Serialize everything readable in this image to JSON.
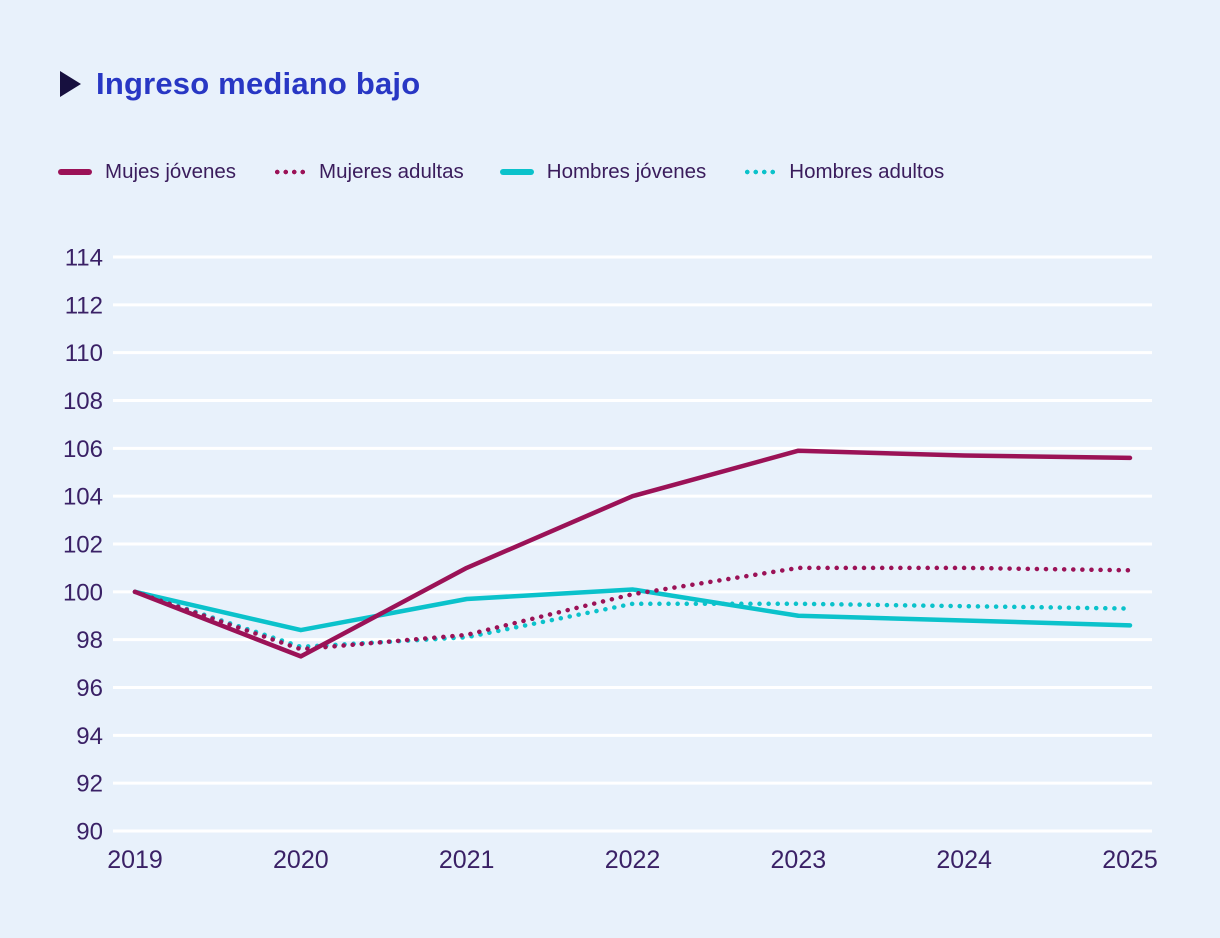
{
  "colors": {
    "background": "#e8f1fb",
    "title": "#2837c4",
    "title_arrow": "#17103f",
    "grid": "#ffffff",
    "tick_text": "#3a2166",
    "legend_text": "#3a1c5c",
    "maroon": "#9b1257",
    "cyan": "#0bc2cb"
  },
  "chart_data": {
    "type": "line",
    "title": "Ingreso mediano bajo",
    "xlabel": "",
    "ylabel": "",
    "categories": [
      "2019",
      "2020",
      "2021",
      "2022",
      "2023",
      "2024",
      "2025"
    ],
    "series": [
      {
        "name": "Mujes jóvenes",
        "color": "#9b1257",
        "line_style": "solid",
        "values": [
          100,
          97.3,
          101,
          104,
          105.9,
          105.7,
          105.6
        ]
      },
      {
        "name": "Mujeres adultas",
        "color": "#9b1257",
        "line_style": "dotted",
        "values": [
          100,
          97.6,
          98.2,
          99.9,
          101,
          101,
          100.9
        ]
      },
      {
        "name": "Hombres jóvenes",
        "color": "#0bc2cb",
        "line_style": "solid",
        "values": [
          100,
          98.4,
          99.7,
          100.1,
          99,
          98.8,
          98.6
        ]
      },
      {
        "name": "Hombres adultos",
        "color": "#0bc2cb",
        "line_style": "dotted",
        "values": [
          100,
          97.7,
          98.1,
          99.5,
          99.5,
          99.4,
          99.3
        ]
      }
    ],
    "ylim": [
      90,
      114
    ],
    "yticks": [
      90,
      92,
      94,
      96,
      98,
      100,
      102,
      104,
      106,
      108,
      110,
      112,
      114
    ],
    "grid": true,
    "legend_position": "top"
  }
}
